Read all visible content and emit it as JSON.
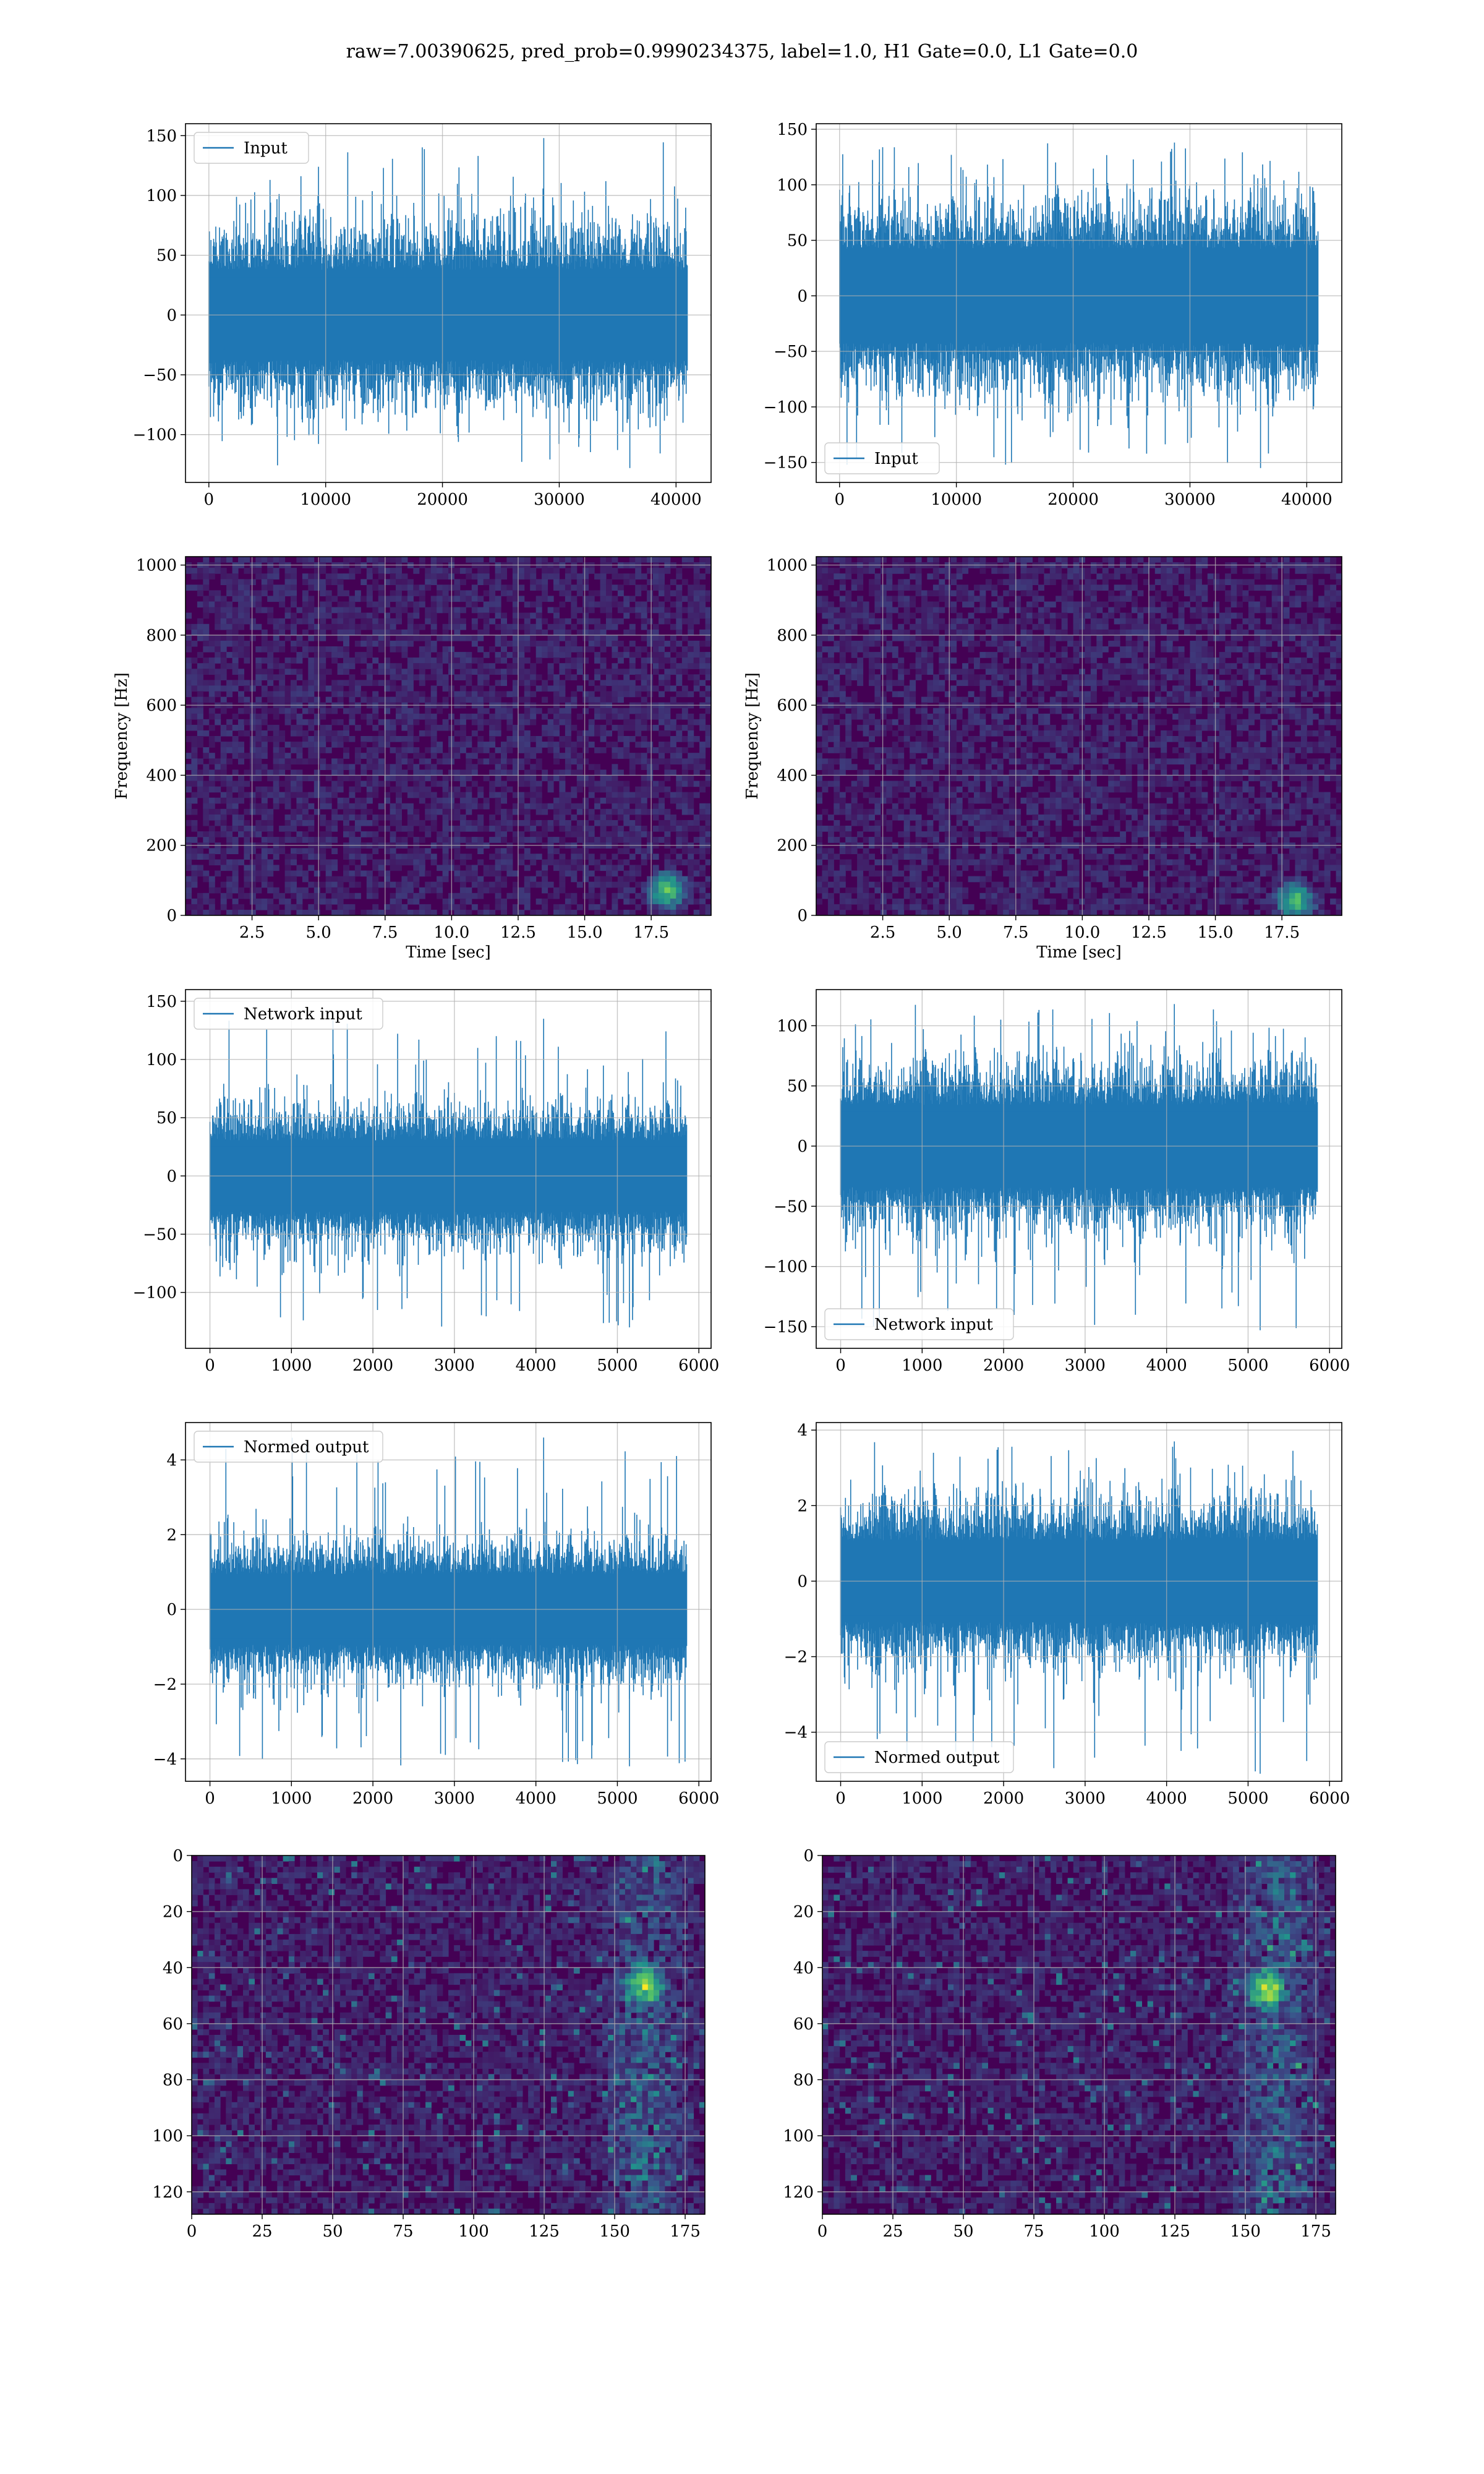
{
  "title": "raw=7.00390625, pred_prob=0.9990234375, label=1.0, H1 Gate=0.0, L1 Gate=0.0",
  "colors": {
    "line": "#1f77b4",
    "viridis_dark": "#440154",
    "grid": "#b0b0b0"
  },
  "chart_data": [
    {
      "type": "line",
      "legend": "Input",
      "legend_loc": "upper-left",
      "xlim": [
        -2000,
        43000
      ],
      "ylim": [
        -140,
        160
      ],
      "xticks": [
        0,
        10000,
        20000,
        30000,
        40000
      ],
      "xticklabels": [
        "0",
        "10000",
        "20000",
        "30000",
        "40000"
      ],
      "yticks": [
        -100,
        -50,
        0,
        50,
        100,
        150
      ],
      "yticklabels": [
        "−100",
        "−50",
        "0",
        "50",
        "100",
        "150"
      ],
      "xlabel": "",
      "ylabel": "",
      "series": {
        "n_samples": 40960,
        "x_max": 40960,
        "band": 42,
        "max": 148,
        "min": -128
      }
    },
    {
      "type": "line",
      "legend": "Input",
      "legend_loc": "lower-left",
      "xlim": [
        -2000,
        43000
      ],
      "ylim": [
        -168,
        155
      ],
      "xticks": [
        0,
        10000,
        20000,
        30000,
        40000
      ],
      "xticklabels": [
        "0",
        "10000",
        "20000",
        "30000",
        "40000"
      ],
      "yticks": [
        -150,
        -100,
        -50,
        0,
        50,
        100,
        150
      ],
      "yticklabels": [
        "−150",
        "−100",
        "−50",
        "0",
        "50",
        "100",
        "150"
      ],
      "xlabel": "",
      "ylabel": "",
      "series": {
        "n_samples": 40960,
        "x_max": 40960,
        "band": 47,
        "max": 138,
        "min": -155
      }
    },
    {
      "type": "heatmap",
      "xlim": [
        0,
        19.75
      ],
      "ylim": [
        0,
        1024
      ],
      "xticks": [
        2.5,
        5,
        7.5,
        10,
        12.5,
        15,
        17.5
      ],
      "xticklabels": [
        "2.5",
        "5.0",
        "7.5",
        "10.0",
        "12.5",
        "15.0",
        "17.5"
      ],
      "yticks": [
        0,
        200,
        400,
        600,
        800,
        1000
      ],
      "yticklabels": [
        "0",
        "200",
        "400",
        "600",
        "800",
        "1000"
      ],
      "xlabel": "Time [sec]",
      "ylabel": "Frequency [Hz]",
      "hotspot": [
        18.0,
        80
      ]
    },
    {
      "type": "heatmap",
      "xlim": [
        0,
        19.75
      ],
      "ylim": [
        0,
        1024
      ],
      "xticks": [
        2.5,
        5,
        7.5,
        10,
        12.5,
        15,
        17.5
      ],
      "xticklabels": [
        "2.5",
        "5.0",
        "7.5",
        "10.0",
        "12.5",
        "15.0",
        "17.5"
      ],
      "yticks": [
        0,
        200,
        400,
        600,
        800,
        1000
      ],
      "yticklabels": [
        "0",
        "200",
        "400",
        "600",
        "800",
        "1000"
      ],
      "xlabel": "Time [sec]",
      "ylabel": "Frequency [Hz]",
      "hotspot": [
        17.9,
        50
      ]
    },
    {
      "type": "line",
      "legend": "Network input",
      "legend_loc": "upper-left",
      "xlim": [
        -300,
        6150
      ],
      "ylim": [
        -148,
        160
      ],
      "xticks": [
        0,
        1000,
        2000,
        3000,
        4000,
        5000,
        6000
      ],
      "xticklabels": [
        "0",
        "1000",
        "2000",
        "3000",
        "4000",
        "5000",
        "6000"
      ],
      "yticks": [
        -100,
        -50,
        0,
        50,
        100,
        150
      ],
      "yticklabels": [
        "−100",
        "−50",
        "0",
        "50",
        "100",
        "150"
      ],
      "xlabel": "",
      "ylabel": "",
      "series": {
        "n_samples": 5850,
        "x_max": 5850,
        "band": 34,
        "max": 135,
        "min": -130
      }
    },
    {
      "type": "line",
      "legend": "Network input",
      "legend_loc": "lower-left",
      "xlim": [
        -300,
        6150
      ],
      "ylim": [
        -168,
        130
      ],
      "xticks": [
        0,
        1000,
        2000,
        3000,
        4000,
        5000,
        6000
      ],
      "xticklabels": [
        "0",
        "1000",
        "2000",
        "3000",
        "4000",
        "5000",
        "6000"
      ],
      "yticks": [
        -150,
        -100,
        -50,
        0,
        50,
        100
      ],
      "yticklabels": [
        "−150",
        "−100",
        "−50",
        "0",
        "50",
        "100"
      ],
      "xlabel": "",
      "ylabel": "",
      "series": {
        "n_samples": 5850,
        "x_max": 5850,
        "band": 38,
        "max": 118,
        "min": -153
      }
    },
    {
      "type": "line",
      "legend": "Normed output",
      "legend_loc": "upper-left",
      "xlim": [
        -300,
        6150
      ],
      "ylim": [
        -4.6,
        5.0
      ],
      "xticks": [
        0,
        1000,
        2000,
        3000,
        4000,
        5000,
        6000
      ],
      "xticklabels": [
        "0",
        "1000",
        "2000",
        "3000",
        "4000",
        "5000",
        "6000"
      ],
      "yticks": [
        -4,
        -2,
        0,
        2,
        4
      ],
      "yticklabels": [
        "−4",
        "−2",
        "0",
        "2",
        "4"
      ],
      "xlabel": "",
      "ylabel": "",
      "series": {
        "n_samples": 5850,
        "x_max": 5850,
        "band": 1.05,
        "max": 4.6,
        "min": -4.2
      }
    },
    {
      "type": "line",
      "legend": "Normed output",
      "legend_loc": "lower-left",
      "xlim": [
        -300,
        6150
      ],
      "ylim": [
        -5.3,
        4.2
      ],
      "xticks": [
        0,
        1000,
        2000,
        3000,
        4000,
        5000,
        6000
      ],
      "xticklabels": [
        "0",
        "1000",
        "2000",
        "3000",
        "4000",
        "5000",
        "6000"
      ],
      "yticks": [
        -4,
        -2,
        0,
        2,
        4
      ],
      "yticklabels": [
        "−4",
        "−2",
        "0",
        "2",
        "4"
      ],
      "xlabel": "",
      "ylabel": "",
      "series": {
        "n_samples": 5850,
        "x_max": 5850,
        "band": 1.2,
        "max": 3.7,
        "min": -5.1
      }
    },
    {
      "type": "heatmap",
      "xlim": [
        0,
        182
      ],
      "ylim": [
        128,
        0
      ],
      "xticks": [
        0,
        25,
        50,
        75,
        100,
        125,
        150,
        175
      ],
      "xticklabels": [
        "0",
        "25",
        "50",
        "75",
        "100",
        "125",
        "150",
        "175"
      ],
      "yticks": [
        0,
        20,
        40,
        60,
        80,
        100,
        120
      ],
      "yticklabels": [
        "0",
        "20",
        "40",
        "60",
        "80",
        "100",
        "120"
      ],
      "xlabel": "",
      "ylabel": "",
      "hotspot": [
        160,
        45
      ]
    },
    {
      "type": "heatmap",
      "xlim": [
        0,
        182
      ],
      "ylim": [
        128,
        0
      ],
      "xticks": [
        0,
        25,
        50,
        75,
        100,
        125,
        150,
        175
      ],
      "xticklabels": [
        "0",
        "25",
        "50",
        "75",
        "100",
        "125",
        "150",
        "175"
      ],
      "yticks": [
        0,
        20,
        40,
        60,
        80,
        100,
        120
      ],
      "yticklabels": [
        "0",
        "20",
        "40",
        "60",
        "80",
        "100",
        "120"
      ],
      "xlabel": "",
      "ylabel": "",
      "hotspot": [
        156,
        47
      ]
    }
  ]
}
